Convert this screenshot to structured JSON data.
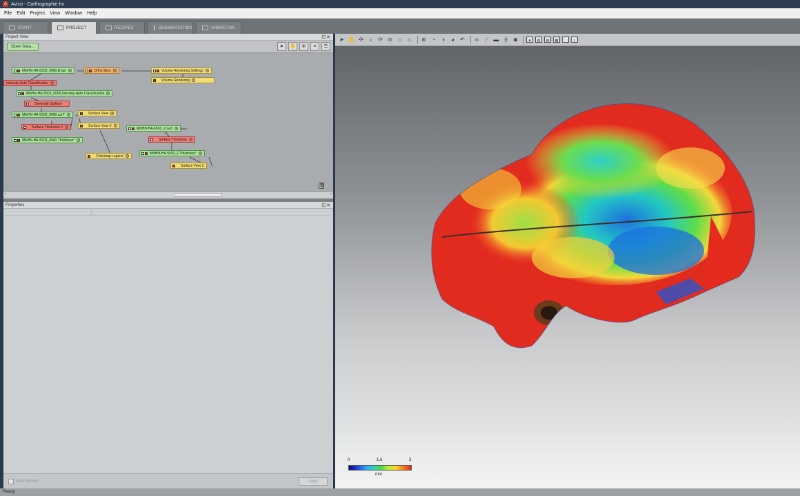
{
  "window": {
    "title": "Avizo - Carthographie.hx"
  },
  "menu": [
    "File",
    "Edit",
    "Project",
    "View",
    "Window",
    "Help"
  ],
  "tabs": [
    {
      "label": "START",
      "active": false
    },
    {
      "label": "PROJECT",
      "active": true
    },
    {
      "label": "RECIPES",
      "active": false
    },
    {
      "label": "SEGMENTATION",
      "active": false
    },
    {
      "label": "ANIMATION",
      "active": false
    }
  ],
  "project_view": {
    "title": "Project View",
    "open_data_label": "Open Data...",
    "nodes": {
      "tif": "MNHN-HA-5503_0000.tif.am",
      "ortho": "Ortho Slice",
      "vrs": "Volume Rendering Settings",
      "vr": "Volume Rendering",
      "iac": "Intensity Auto Classification",
      "iacres": "MNHN-HA-5503_0000.Intensity-Auto-Classification",
      "gensurf": "Generate Surface",
      "surf": "MNHN-HA-5503_0000.surf*",
      "sv": "Surface View",
      "st2": "Surface Thickness 2",
      "sv3": "Surface View 3",
      "surf2": "MNHN-HA-5503_2.surf",
      "thick1": "MNHN-HA-5503_0000.Thickness*",
      "st": "Surface Thickness",
      "cml": "Colormap Legend",
      "thick2": "MNHN-HA-5503_2.Thickness*",
      "sv2": "Surface View 2"
    }
  },
  "properties": {
    "title": "Properties",
    "auto_refresh_label": "auto-refresh",
    "apply_label": "Apply"
  },
  "viewer": {
    "colormap": {
      "min": "0",
      "mid": "1.6",
      "max": "3",
      "unit": "mm"
    }
  },
  "status": "Ready"
}
